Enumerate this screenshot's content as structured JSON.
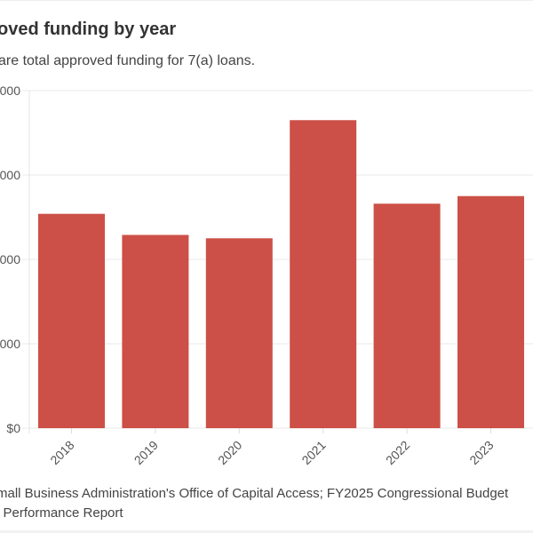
{
  "title": "oved funding by year",
  "subtitle": "are total approved funding for 7(a) loans.",
  "source_lines": [
    "mall Business Administration's Office of Capital Access; FY2025 Congressional Budget",
    "l Performance Report"
  ],
  "chart_data": {
    "type": "bar",
    "title": "oved funding by year",
    "categories": [
      "2018",
      "2019",
      "2020",
      "2021",
      "2022",
      "2023"
    ],
    "values": [
      2.54,
      2.29,
      2.25,
      3.65,
      2.66,
      2.75
    ],
    "ylim": [
      0,
      4
    ],
    "yticks": [
      0,
      1,
      2,
      3,
      4
    ],
    "ytick_labels": [
      "$0",
      "000",
      "000",
      "000",
      "000"
    ],
    "xlabel": "",
    "ylabel": "",
    "grid": true,
    "bar_color": "#cc5047"
  }
}
